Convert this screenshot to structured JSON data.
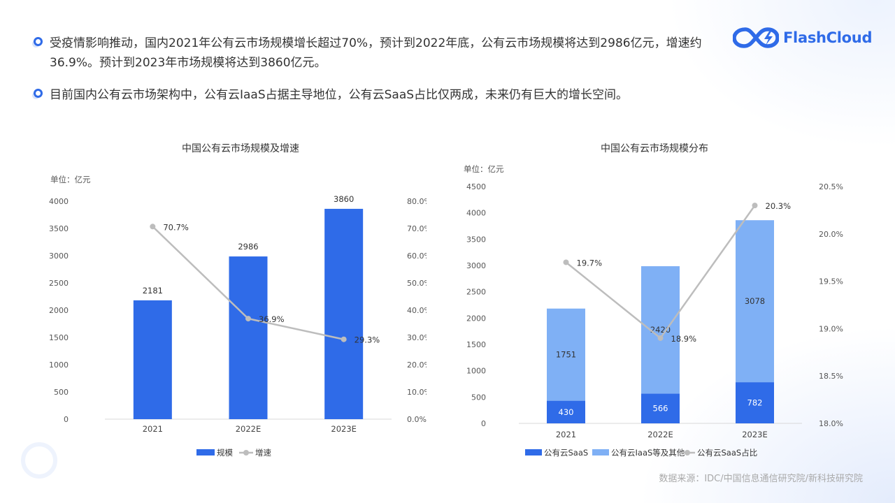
{
  "bullets": [
    "受疫情影响推动，国内2021年公有云市场规模增长超过70%，预计到2022年底，公有云市场规模将达到2986亿元，增速约36.9%。预计到2023年市场规模将达到3860亿元。",
    "目前国内公有云市场架构中，公有云IaaS占据主导地位，公有云SaaS占比仅两成，未来仍有巨大的增长空间。"
  ],
  "logo": {
    "text": "FlashCloud",
    "icon": "infinity-cloud-bolt-icon",
    "color": "#2f6be8"
  },
  "source": "数据来源：IDC/中国信息通信研究院/新科技研究院",
  "colors": {
    "accent": "#2f6be8",
    "bar_dark": "#2f6be8",
    "bar_light": "#7fb0f5",
    "line": "#bdbdbd"
  },
  "chart_data": [
    {
      "type": "bar",
      "title": "中国公有云市场规模及增速",
      "unit": "单位：亿元",
      "categories": [
        "2021",
        "2022E",
        "2023E"
      ],
      "series": [
        {
          "name": "规模",
          "type": "bar",
          "values": [
            2181,
            2986,
            3860
          ],
          "color": "#2f6be8"
        },
        {
          "name": "增速",
          "type": "line",
          "values": [
            70.7,
            36.9,
            29.3
          ],
          "labels": [
            "70.7%",
            "36.9%",
            "29.3%"
          ],
          "axis": "right",
          "color": "#bdbdbd"
        }
      ],
      "y_left": {
        "min": 0,
        "max": 4000,
        "ticks": [
          "0",
          "500",
          "1000",
          "1500",
          "2000",
          "2500",
          "3000",
          "3500",
          "4000"
        ]
      },
      "y_right": {
        "min": 0,
        "max": 80,
        "ticks": [
          "0.0%",
          "10.0%",
          "20.0%",
          "30.0%",
          "40.0%",
          "50.0%",
          "60.0%",
          "70.0%",
          "80.0%"
        ]
      },
      "legend": "bottom-center",
      "grid": false
    },
    {
      "type": "bar",
      "stacked": true,
      "title": "中国公有云市场规模分布",
      "unit": "单位：亿元",
      "categories": [
        "2021",
        "2022E",
        "2023E"
      ],
      "series": [
        {
          "name": "公有云SaaS",
          "type": "bar",
          "values": [
            430,
            566,
            782
          ],
          "color": "#2f6be8"
        },
        {
          "name": "公有云IaaS等及其他",
          "type": "bar",
          "values": [
            1751,
            2420,
            3078
          ],
          "color": "#7fb0f5"
        },
        {
          "name": "公有云SaaS占比",
          "type": "line",
          "values": [
            19.7,
            18.9,
            20.3
          ],
          "labels": [
            "19.7%",
            "18.9%",
            "20.3%"
          ],
          "axis": "right",
          "color": "#bdbdbd"
        }
      ],
      "y_left": {
        "min": 0,
        "max": 4500,
        "ticks": [
          "0",
          "500",
          "1000",
          "1500",
          "2000",
          "2500",
          "3000",
          "3500",
          "4000",
          "4500"
        ]
      },
      "y_right": {
        "min": 18.0,
        "max": 20.5,
        "ticks": [
          "18.0%",
          "18.5%",
          "19.0%",
          "19.5%",
          "20.0%",
          "20.5%"
        ]
      },
      "legend": "bottom-center",
      "grid": false
    }
  ]
}
